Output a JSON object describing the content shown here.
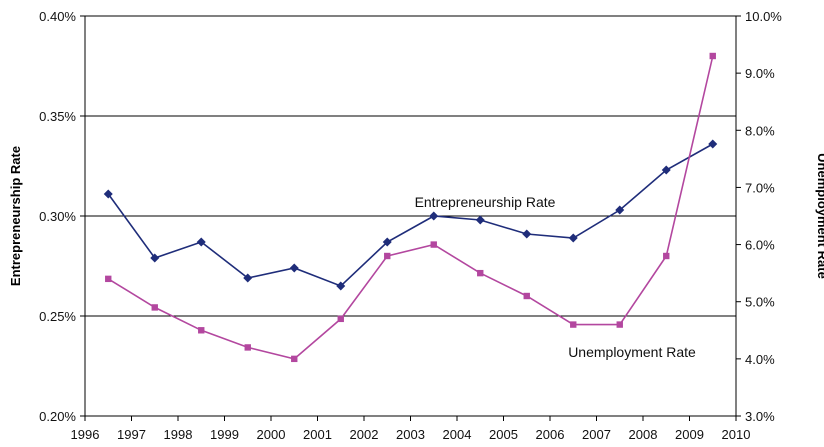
{
  "chart_data": {
    "type": "line",
    "x_ticks": [
      "1996",
      "1997",
      "1998",
      "1999",
      "2000",
      "2001",
      "2002",
      "2003",
      "2004",
      "2005",
      "2006",
      "2007",
      "2008",
      "2009",
      "2010"
    ],
    "xlim": [
      1996,
      2010
    ],
    "left_axis": {
      "label": "Entrepreneurship Rate",
      "ylim": [
        0.2,
        0.4
      ],
      "ticks": [
        {
          "value": 0.2,
          "label": "0.20%"
        },
        {
          "value": 0.25,
          "label": "0.25%"
        },
        {
          "value": 0.3,
          "label": "0.30%"
        },
        {
          "value": 0.35,
          "label": "0.35%"
        },
        {
          "value": 0.4,
          "label": "0.40%"
        }
      ]
    },
    "right_axis": {
      "label": "Unemployment Rate",
      "ylim": [
        3.0,
        10.0
      ],
      "ticks": [
        {
          "value": 3.0,
          "label": "3.0%"
        },
        {
          "value": 4.0,
          "label": "4.0%"
        },
        {
          "value": 5.0,
          "label": "5.0%"
        },
        {
          "value": 6.0,
          "label": "6.0%"
        },
        {
          "value": 7.0,
          "label": "7.0%"
        },
        {
          "value": 8.0,
          "label": "8.0%"
        },
        {
          "value": 9.0,
          "label": "9.0%"
        },
        {
          "value": 10.0,
          "label": "10.0%"
        }
      ]
    },
    "gridlines_left": [
      0.25,
      0.3,
      0.35
    ],
    "series": [
      {
        "name": "Entrepreneurship Rate",
        "axis": "left",
        "color": "#1f2d7a",
        "marker": "diamond",
        "x": [
          1996.5,
          1997.5,
          1998.5,
          1999.5,
          2000.5,
          2001.5,
          2002.5,
          2003.5,
          2004.5,
          2005.5,
          2006.5,
          2007.5,
          2008.5,
          2009.5
        ],
        "values": [
          0.311,
          0.279,
          0.287,
          0.269,
          0.274,
          0.265,
          0.287,
          0.3,
          0.298,
          0.291,
          0.289,
          0.303,
          0.323,
          0.336
        ],
        "label_anchor": {
          "x": 2002.5,
          "value": 0.306
        }
      },
      {
        "name": "Unemployment Rate",
        "axis": "right",
        "color": "#b3479f",
        "marker": "square",
        "x": [
          1996.5,
          1997.5,
          1998.5,
          1999.5,
          2000.5,
          2001.5,
          2002.5,
          2003.5,
          2004.5,
          2005.5,
          2006.5,
          2007.5,
          2008.5,
          2009.5
        ],
        "values": [
          5.4,
          4.9,
          4.5,
          4.2,
          4.0,
          4.7,
          5.8,
          6.0,
          5.5,
          5.1,
          4.6,
          4.6,
          5.8,
          9.3
        ],
        "label_anchor": {
          "x": 2006.0,
          "value": 4.12
        }
      }
    ],
    "grid": true
  }
}
